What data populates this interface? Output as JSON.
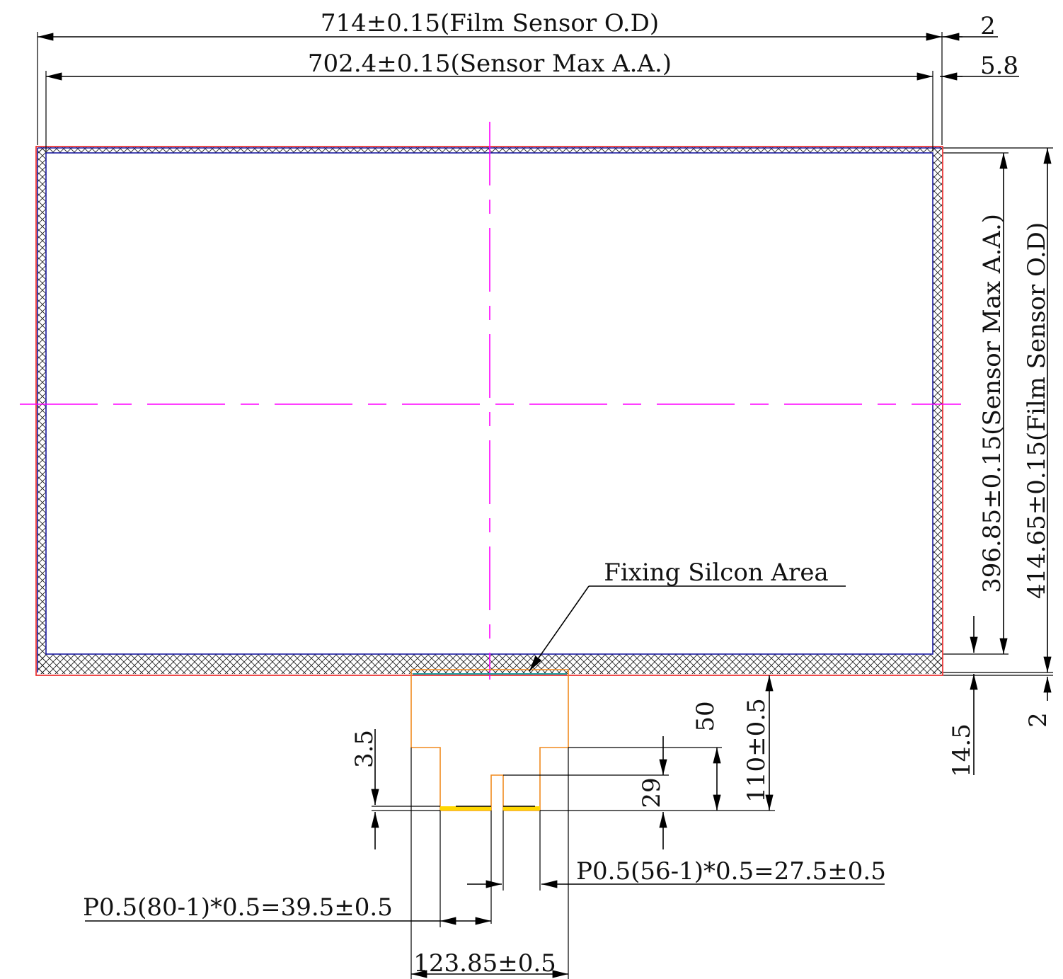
{
  "dimensions": {
    "film_width": "714±0.15(Film Sensor O.D)",
    "aa_width": "702.4±0.15(Sensor Max A.A.)",
    "right_gap_top": "2",
    "right_gap_aa": "5.8",
    "aa_height": "396.85±0.15(Sensor Max A.A.)",
    "film_height": "414.65±0.15(Film Sensor O.D)",
    "bottom_border": "14.5",
    "bottom_gap": "2",
    "fixing_label": "Fixing Silcon Area",
    "tail_offset": "110±0.5",
    "tail_step": "50",
    "finger_length": "29",
    "contact_depth": "3.5",
    "pitch_right": "P0.5(56-1)*0.5=27.5±0.5",
    "pitch_left": "P0.5(80-1)*0.5=39.5±0.5",
    "tail_width": "123.85±0.5"
  },
  "colors": {
    "film_outline": "#e81e1e",
    "aa_outline": "#1a1aa0",
    "centerline": "#ff00ff",
    "fpc_outline": "#f08a1e",
    "contact_pad": "#ffd700"
  }
}
